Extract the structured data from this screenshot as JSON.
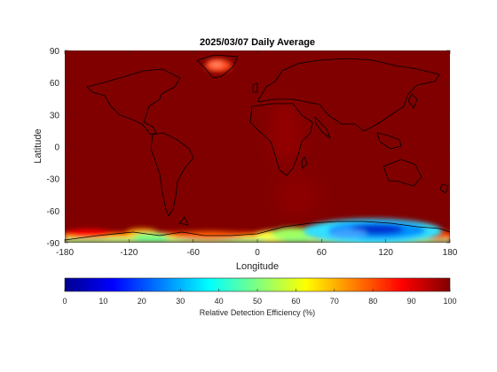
{
  "chart_data": {
    "type": "heatmap",
    "title": "2025/03/07 Daily Average",
    "xlabel": "Longitude",
    "ylabel": "Latitude",
    "xlim": [
      -180,
      180
    ],
    "ylim": [
      -90,
      90
    ],
    "xticks": [
      -180,
      -120,
      -60,
      0,
      60,
      120,
      180
    ],
    "yticks": [
      90,
      60,
      30,
      0,
      -30,
      -60,
      -90
    ],
    "colormap": "jet",
    "colorbar": {
      "label": "Relative Detection Efficiency (%)",
      "range": [
        0,
        100
      ],
      "ticks": [
        0,
        10,
        20,
        30,
        40,
        50,
        60,
        70,
        80,
        90,
        100
      ],
      "placement": "bottom"
    },
    "background_value": 100,
    "features": [
      {
        "region": "Greenland ice cap",
        "lon": -40,
        "lat": 75,
        "value": 90
      },
      {
        "region": "Sahara",
        "lon": 15,
        "lat": 15,
        "value": 96
      },
      {
        "region": "Antarctic coast West",
        "lon": -150,
        "lat": -82,
        "value": 55
      },
      {
        "region": "Antarctic coast Atlantic",
        "lon": 0,
        "lat": -82,
        "value": 50
      },
      {
        "region": "East Antarctica",
        "lon": 105,
        "lat": -78,
        "value": 15
      }
    ],
    "grid": false,
    "overlay": "world coastlines"
  }
}
